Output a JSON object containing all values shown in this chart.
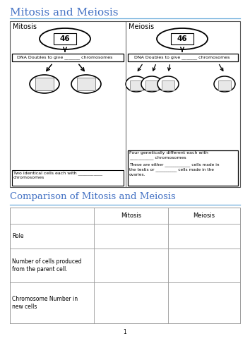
{
  "title1": "Mitosis and Meiosis",
  "title2": "Comparison of Mitosis and Meiosis",
  "title_color": "#4472C4",
  "bg_color": "#ffffff",
  "mitosis_label": "Mitosis",
  "meiosis_label": "Meiosis",
  "cell_number": "46",
  "dna_text": "DNA Doubles to give _______ chromosomes",
  "mitosis_bottom_text": "Two identical cells each with ___________\nchromosomes",
  "meiosis_bottom_text1": "Four genetically different each with\n___________ chromosomes",
  "meiosis_bottom_text2": "These are either ____________ cells made in\nthe testis or __________ cells made in the\novaries.",
  "table_headers": [
    "",
    "Mitosis",
    "Meiosis"
  ],
  "table_rows": [
    [
      "Role",
      "",
      ""
    ],
    [
      "Number of cells produced\nfrom the parent cell.",
      "",
      ""
    ],
    [
      "Chromosome Number in\nnew cells",
      "",
      ""
    ]
  ],
  "page_number": "1",
  "line_color": "#6aabdb"
}
